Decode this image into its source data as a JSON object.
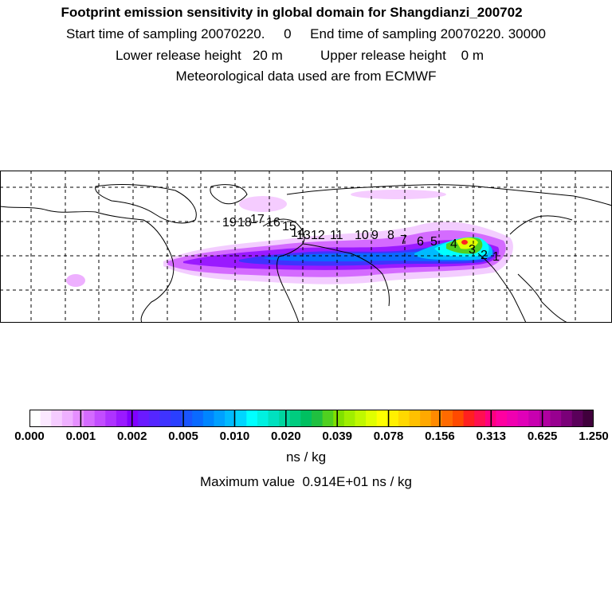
{
  "header": {
    "title": "Footprint emission sensitivity in global domain for Shangdianzi_200702",
    "line1": "Start time of sampling 20070220.     0     End time of sampling 20070220. 30000",
    "line2": "Lower release height   20 m          Upper release height    0 m",
    "line3": "Meteorological data used are from ECMWF"
  },
  "map": {
    "ocean_color": "#ffffff",
    "coast_color": "#000000",
    "grid_style": "dashed",
    "trajectory_labels": [
      "19",
      "18",
      "17",
      "16",
      "15",
      "14",
      "13",
      "12",
      "11",
      "10",
      "9",
      "8",
      "7",
      "6",
      "5",
      "4",
      "3",
      "2",
      "1"
    ]
  },
  "colorbar": {
    "colors": [
      "#ffffff",
      "#fbe8ff",
      "#f5ccff",
      "#eeb0ff",
      "#e58fff",
      "#d46bff",
      "#c24dff",
      "#ae33ff",
      "#9a1aff",
      "#8000ff",
      "#6a1aff",
      "#5526ff",
      "#3f33ff",
      "#2a3fff",
      "#1a55ff",
      "#0a6aff",
      "#0085ff",
      "#00a0ff",
      "#00bbff",
      "#00d5ff",
      "#00ffff",
      "#00f0e0",
      "#00e0bf",
      "#00d59f",
      "#00cc7f",
      "#00c060",
      "#20c040",
      "#50d020",
      "#80e000",
      "#a0ee00",
      "#c0f800",
      "#e0ff00",
      "#ffff00",
      "#fff000",
      "#ffd800",
      "#ffc000",
      "#ffa800",
      "#ff8a00",
      "#ff6a00",
      "#ff4a00",
      "#ff2020",
      "#ff1050",
      "#ff0080",
      "#ff00a0",
      "#f000b0",
      "#e000b8",
      "#c800b0",
      "#b000a0",
      "#980090",
      "#7a0078",
      "#5a005a",
      "#40003c"
    ],
    "tick_labels": [
      "0.000",
      "0.001",
      "0.002",
      "0.005",
      "0.010",
      "0.020",
      "0.039",
      "0.078",
      "0.156",
      "0.313",
      "0.625",
      "1.250"
    ]
  },
  "unit": "ns / kg",
  "max_value": "Maximum value  0.914E+01 ns / kg"
}
